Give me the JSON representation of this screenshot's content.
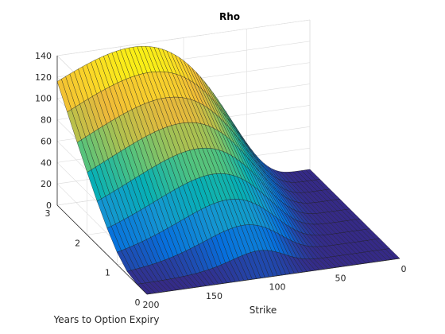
{
  "chart_data": {
    "type": "surface",
    "title": "Rho",
    "xlabel": "Strike",
    "ylabel": "Years to Option Expiry",
    "zlabel": "",
    "x_axis": {
      "range": [
        0,
        200
      ],
      "ticks": [
        0,
        50,
        100,
        150,
        200
      ],
      "reversed": true
    },
    "y_axis": {
      "range": [
        0,
        3
      ],
      "ticks": [
        0,
        1,
        2,
        3
      ]
    },
    "z_axis": {
      "range": [
        0,
        140
      ],
      "ticks": [
        0,
        20,
        40,
        60,
        80,
        100,
        120,
        140
      ]
    },
    "grid": true,
    "colormap": "parula",
    "strikes": [
      0,
      10,
      20,
      30,
      40,
      50,
      60,
      70,
      80,
      90,
      100,
      110,
      120,
      130,
      140,
      150,
      160,
      170,
      180,
      190,
      200
    ],
    "expiries": [
      0.1,
      0.4,
      0.8,
      1.2,
      1.6,
      2.0,
      2.4,
      2.8,
      3.0
    ],
    "peak": {
      "strike": 90,
      "expiry": 3.0,
      "rho": 135
    }
  }
}
